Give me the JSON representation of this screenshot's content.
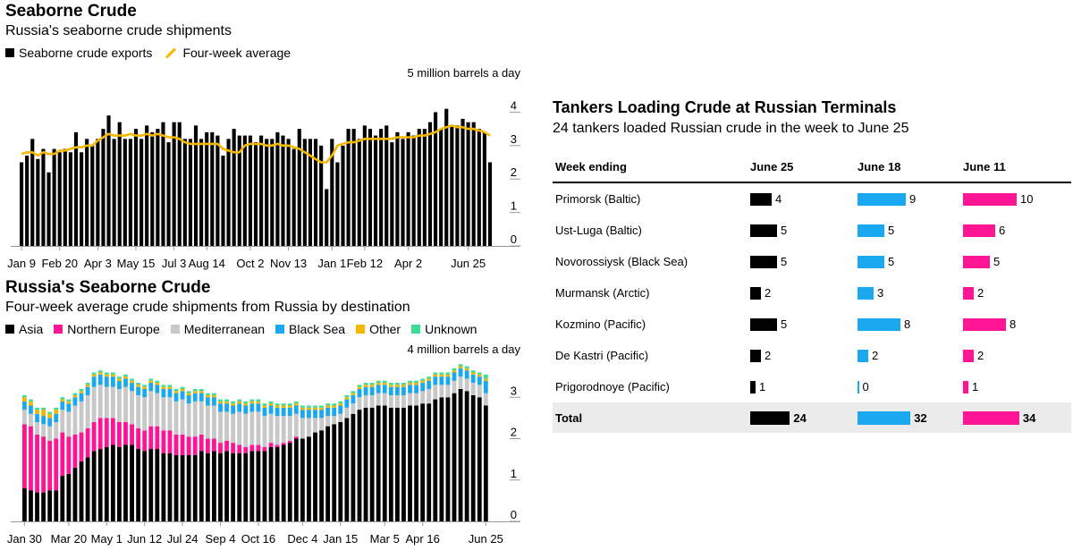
{
  "chart1": {
    "title": "Seaborne Crude",
    "subtitle": "Russia's seaborne crude shipments",
    "legend": [
      {
        "label": "Seaborne crude exports",
        "color": "#000000",
        "kind": "square"
      },
      {
        "label": "Four-week average",
        "color": "#f5b800",
        "kind": "line"
      }
    ],
    "unit": "5 million barrels a day"
  },
  "chart2": {
    "title": "Russia's Seaborne Crude",
    "subtitle": "Four-week average crude shipments from Russia by destination",
    "legend": [
      {
        "label": "Asia",
        "color": "#000000"
      },
      {
        "label": "Northern Europe",
        "color": "#ff1493"
      },
      {
        "label": "Mediterranean",
        "color": "#c8c8c8"
      },
      {
        "label": "Black Sea",
        "color": "#1aa8f0"
      },
      {
        "label": "Other",
        "color": "#f5b800"
      },
      {
        "label": "Unknown",
        "color": "#3ddc97"
      }
    ],
    "unit": "4 million barrels a day"
  },
  "chart_data": [
    {
      "type": "bar",
      "title": "Seaborne Crude",
      "subtitle": "Russia's seaborne crude shipments",
      "ylabel": "million barrels a day",
      "ylim": [
        0,
        5
      ],
      "yticks": [
        0,
        1,
        2,
        3,
        4
      ],
      "xticklabels": [
        "Jan 9",
        "Feb 20",
        "Apr 3",
        "May 15",
        "Jul 3",
        "Aug 14",
        "Oct 2",
        "Nov 13",
        "Jan 1",
        "Feb 12",
        "Apr 2",
        "Jun 25"
      ],
      "xtick_index": [
        0,
        7,
        14,
        21,
        28,
        34,
        42,
        49,
        57,
        63,
        71,
        82
      ],
      "series": [
        {
          "name": "Seaborne crude exports",
          "kind": "bar",
          "color": "#000000",
          "values": [
            2.5,
            2.7,
            3.2,
            2.6,
            2.9,
            2.2,
            2.9,
            2.8,
            2.9,
            2.8,
            3.4,
            2.8,
            3.2,
            3.0,
            3.2,
            3.5,
            3.9,
            3.2,
            3.7,
            3.2,
            3.2,
            3.5,
            3.2,
            3.6,
            3.4,
            3.5,
            3.7,
            3.1,
            3.7,
            3.7,
            3.2,
            3.2,
            3.6,
            3.2,
            3.4,
            3.4,
            3.3,
            2.7,
            3.2,
            3.5,
            3.3,
            3.3,
            3.3,
            3.1,
            3.3,
            3.2,
            3.2,
            3.4,
            3.3,
            3.2,
            2.9,
            3.5,
            3.2,
            3.2,
            3.2,
            3.0,
            1.7,
            3.2,
            2.5,
            3.0,
            3.5,
            3.5,
            3.2,
            3.6,
            3.5,
            3.3,
            3.5,
            3.6,
            3.1,
            3.4,
            3.2,
            3.4,
            3.3,
            3.5,
            3.5,
            3.7,
            4.0,
            3.5,
            4.1,
            3.6,
            3.6,
            3.8,
            3.7,
            3.7,
            3.5,
            3.4,
            2.5
          ]
        },
        {
          "name": "Four-week average",
          "kind": "line",
          "color": "#f5b800",
          "values": [
            2.75,
            2.8,
            2.8,
            2.7,
            2.8,
            2.75,
            2.75,
            2.85,
            2.85,
            2.9,
            2.95,
            2.95,
            3.0,
            3.0,
            3.15,
            3.25,
            3.35,
            3.3,
            3.3,
            3.3,
            3.35,
            3.3,
            3.3,
            3.35,
            3.3,
            3.35,
            3.3,
            3.25,
            3.25,
            3.2,
            3.1,
            3.05,
            3.05,
            3.05,
            3.05,
            3.05,
            3.05,
            2.9,
            2.85,
            2.8,
            2.8,
            3.0,
            3.05,
            3.05,
            3.05,
            3.0,
            3.0,
            3.05,
            3.0,
            3.0,
            2.95,
            2.9,
            2.8,
            2.7,
            2.6,
            2.5,
            2.5,
            2.7,
            3.0,
            3.05,
            3.1,
            3.1,
            3.15,
            3.2,
            3.2,
            3.2,
            3.2,
            3.2,
            3.2,
            3.25,
            3.25,
            3.25,
            3.25,
            3.3,
            3.3,
            3.35,
            3.4,
            3.5,
            3.55,
            3.6,
            3.55,
            3.55,
            3.5,
            3.5,
            3.45,
            3.4,
            3.3
          ]
        }
      ]
    },
    {
      "type": "bar",
      "stacked": true,
      "title": "Russia's Seaborne Crude",
      "subtitle": "Four-week average crude shipments from Russia by destination",
      "ylabel": "million barrels a day",
      "ylim": [
        0,
        4
      ],
      "yticks": [
        0,
        1,
        2,
        3
      ],
      "xticklabels": [
        "Jan 30",
        "Mar 20",
        "May 1",
        "Jun 12",
        "Jul 24",
        "Sep 4",
        "Oct 16",
        "Dec 4",
        "Jan 15",
        "Mar 5",
        "Apr 16",
        "Jun 25"
      ],
      "xtick_index": [
        0,
        7,
        13,
        19,
        25,
        31,
        37,
        44,
        50,
        57,
        63,
        73
      ],
      "series": [
        {
          "name": "Asia",
          "color": "#000000",
          "values": [
            0.8,
            0.75,
            0.7,
            0.7,
            0.75,
            0.75,
            1.1,
            1.15,
            1.3,
            1.45,
            1.55,
            1.7,
            1.75,
            1.8,
            1.85,
            1.8,
            1.85,
            1.85,
            1.75,
            1.7,
            1.75,
            1.75,
            1.65,
            1.65,
            1.6,
            1.6,
            1.6,
            1.6,
            1.7,
            1.65,
            1.7,
            1.65,
            1.7,
            1.65,
            1.65,
            1.65,
            1.7,
            1.7,
            1.7,
            1.8,
            1.8,
            1.85,
            1.9,
            2.0,
            2.0,
            2.05,
            2.15,
            2.2,
            2.3,
            2.35,
            2.4,
            2.5,
            2.6,
            2.7,
            2.75,
            2.75,
            2.8,
            2.8,
            2.75,
            2.75,
            2.75,
            2.8,
            2.8,
            2.85,
            2.85,
            2.95,
            3.0,
            3.0,
            3.1,
            3.2,
            3.15,
            3.05,
            3.0,
            2.8
          ]
        },
        {
          "name": "Northern Europe",
          "color": "#ff1493",
          "values": [
            1.55,
            1.55,
            1.4,
            1.35,
            1.2,
            1.25,
            1.05,
            0.9,
            0.8,
            0.7,
            0.7,
            0.7,
            0.75,
            0.7,
            0.65,
            0.6,
            0.55,
            0.5,
            0.5,
            0.5,
            0.55,
            0.55,
            0.55,
            0.55,
            0.5,
            0.5,
            0.45,
            0.45,
            0.4,
            0.35,
            0.3,
            0.25,
            0.25,
            0.25,
            0.2,
            0.15,
            0.15,
            0.15,
            0.1,
            0.1,
            0.05,
            0.05,
            0.05,
            0.05,
            0,
            0,
            0,
            0,
            0,
            0,
            0,
            0,
            0,
            0,
            0,
            0,
            0,
            0,
            0,
            0,
            0,
            0,
            0,
            0,
            0,
            0,
            0,
            0,
            0,
            0,
            0,
            0,
            0,
            0
          ]
        },
        {
          "name": "Mediterranean",
          "color": "#c8c8c8",
          "values": [
            0.35,
            0.3,
            0.3,
            0.3,
            0.35,
            0.4,
            0.55,
            0.6,
            0.7,
            0.75,
            0.8,
            0.85,
            0.8,
            0.75,
            0.75,
            0.8,
            0.85,
            0.8,
            0.8,
            0.8,
            0.85,
            0.8,
            0.8,
            0.8,
            0.8,
            0.85,
            0.8,
            0.85,
            0.8,
            0.8,
            0.8,
            0.75,
            0.7,
            0.7,
            0.8,
            0.8,
            0.8,
            0.8,
            0.75,
            0.7,
            0.7,
            0.65,
            0.6,
            0.55,
            0.5,
            0.45,
            0.35,
            0.3,
            0.25,
            0.2,
            0.2,
            0.25,
            0.25,
            0.3,
            0.3,
            0.3,
            0.3,
            0.3,
            0.3,
            0.3,
            0.3,
            0.3,
            0.3,
            0.3,
            0.35,
            0.35,
            0.3,
            0.3,
            0.3,
            0.3,
            0.3,
            0.3,
            0.3,
            0.3
          ]
        },
        {
          "name": "Black Sea",
          "color": "#1aa8f0",
          "values": [
            0.2,
            0.2,
            0.2,
            0.2,
            0.2,
            0.2,
            0.2,
            0.2,
            0.2,
            0.2,
            0.2,
            0.25,
            0.25,
            0.25,
            0.25,
            0.2,
            0.2,
            0.2,
            0.2,
            0.2,
            0.2,
            0.2,
            0.2,
            0.2,
            0.2,
            0.2,
            0.2,
            0.2,
            0.2,
            0.2,
            0.2,
            0.2,
            0.2,
            0.2,
            0.2,
            0.2,
            0.2,
            0.2,
            0.2,
            0.2,
            0.2,
            0.2,
            0.2,
            0.2,
            0.2,
            0.2,
            0.2,
            0.2,
            0.2,
            0.2,
            0.2,
            0.2,
            0.2,
            0.2,
            0.2,
            0.2,
            0.2,
            0.2,
            0.2,
            0.2,
            0.2,
            0.2,
            0.2,
            0.2,
            0.2,
            0.2,
            0.2,
            0.2,
            0.2,
            0.2,
            0.2,
            0.2,
            0.2,
            0.3
          ]
        },
        {
          "name": "Other",
          "color": "#f5b800",
          "values": [
            0.1,
            0.1,
            0.1,
            0.15,
            0.1,
            0.1,
            0.05,
            0.05,
            0.05,
            0.05,
            0.05,
            0.05,
            0.05,
            0.05,
            0.05,
            0.05,
            0.05,
            0.05,
            0.05,
            0.05,
            0.05,
            0.05,
            0.05,
            0.05,
            0.05,
            0.05,
            0.05,
            0.05,
            0.05,
            0.05,
            0.05,
            0.05,
            0.05,
            0.05,
            0.05,
            0.05,
            0.05,
            0.05,
            0.05,
            0.05,
            0.05,
            0.05,
            0.05,
            0.05,
            0.05,
            0.05,
            0.05,
            0.05,
            0.05,
            0.05,
            0.05,
            0.05,
            0.05,
            0.05,
            0.05,
            0.05,
            0.05,
            0.05,
            0.05,
            0.05,
            0.05,
            0.05,
            0.05,
            0.05,
            0.05,
            0.05,
            0.05,
            0.05,
            0.05,
            0.05,
            0.05,
            0.05,
            0.05,
            0.05
          ]
        },
        {
          "name": "Unknown",
          "color": "#3ddc97",
          "values": [
            0.05,
            0.05,
            0.05,
            0.05,
            0.05,
            0.05,
            0.05,
            0.05,
            0.05,
            0.05,
            0.05,
            0.05,
            0.05,
            0.05,
            0.05,
            0.05,
            0.05,
            0.05,
            0.05,
            0.05,
            0.05,
            0.05,
            0.05,
            0.05,
            0.05,
            0.05,
            0.05,
            0.05,
            0.05,
            0.05,
            0.05,
            0.05,
            0.05,
            0.05,
            0.05,
            0.05,
            0.05,
            0.05,
            0.05,
            0.05,
            0.05,
            0.05,
            0.05,
            0.05,
            0.05,
            0.05,
            0.05,
            0.05,
            0.05,
            0.05,
            0.05,
            0.05,
            0.05,
            0.05,
            0.05,
            0.05,
            0.05,
            0.05,
            0.05,
            0.05,
            0.05,
            0.05,
            0.05,
            0.05,
            0.05,
            0.05,
            0.05,
            0.05,
            0.05,
            0.05,
            0.05,
            0.05,
            0.05,
            0.1
          ]
        }
      ]
    },
    {
      "type": "table",
      "title": "Tankers Loading Crude at Russian Terminals",
      "subtitle": "24 tankers loaded Russian crude in the week to June 25",
      "header": "Week ending",
      "columns": [
        {
          "label": "June 25",
          "color": "#000000"
        },
        {
          "label": "June 18",
          "color": "#1aa8f0"
        },
        {
          "label": "June 11",
          "color": "#ff1493"
        }
      ],
      "rows": [
        {
          "terminal": "Primorsk (Baltic)",
          "values": [
            4,
            9,
            10
          ]
        },
        {
          "terminal": "Ust-Luga (Baltic)",
          "values": [
            5,
            5,
            6
          ]
        },
        {
          "terminal": "Novorossiysk (Black Sea)",
          "values": [
            5,
            5,
            5
          ]
        },
        {
          "terminal": "Murmansk (Arctic)",
          "values": [
            2,
            3,
            2
          ]
        },
        {
          "terminal": "Kozmino (Pacific)",
          "values": [
            5,
            8,
            8
          ]
        },
        {
          "terminal": "De Kastri (Pacific)",
          "values": [
            2,
            2,
            2
          ]
        },
        {
          "terminal": "Prigorodnoye (Pacific)",
          "values": [
            1,
            0,
            1
          ]
        }
      ],
      "total": {
        "label": "Total",
        "values": [
          24,
          32,
          34
        ]
      }
    }
  ]
}
